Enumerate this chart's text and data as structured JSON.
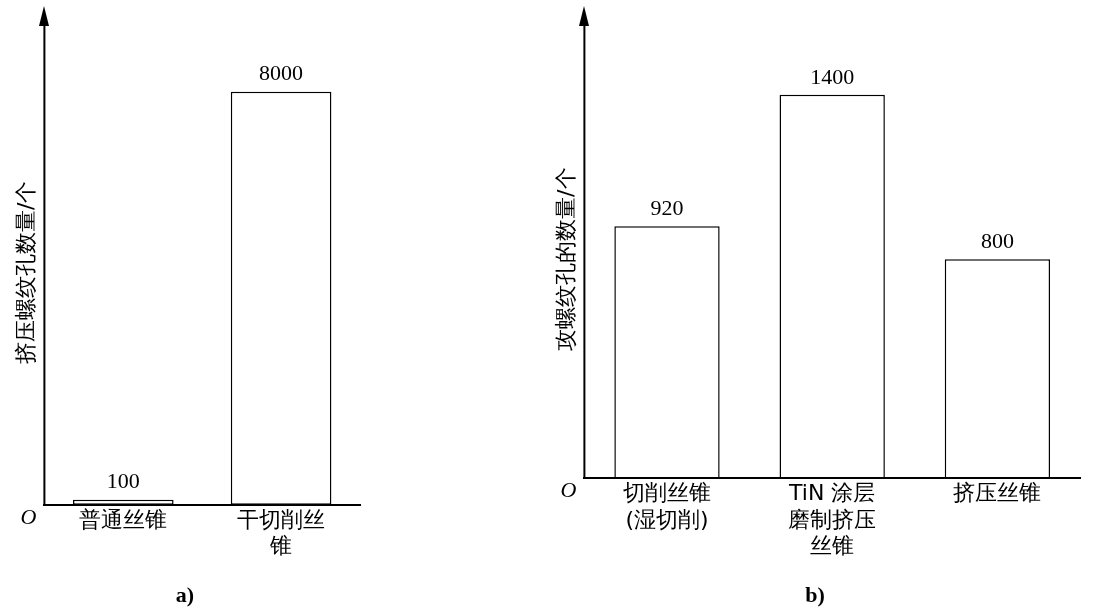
{
  "chart_data": [
    {
      "type": "bar",
      "title": "a)",
      "ylabel": "挤压螺纹孔数量/个",
      "categories": [
        "普通丝锥",
        "干切削丝锥"
      ],
      "values": [
        100,
        8000
      ],
      "color": "#ffffff",
      "data_labels": true,
      "grid": false,
      "tick_labels": "x",
      "annotations": [
        "O"
      ]
    },
    {
      "type": "bar",
      "title": "b)",
      "ylabel": "攻螺纹孔的数量/个",
      "categories": [
        "切削丝锥(湿切削)",
        "TiN 涂层磨制挤压丝锥",
        "挤压丝锥"
      ],
      "values": [
        920,
        1400,
        800
      ],
      "color": "#ffffff",
      "data_labels": true,
      "grid": false,
      "tick_labels": "x",
      "annotations": [
        "O"
      ]
    }
  ]
}
